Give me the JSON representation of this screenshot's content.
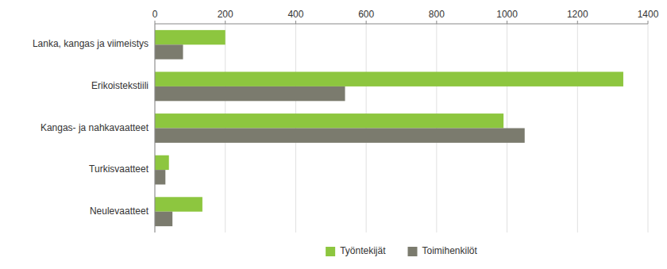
{
  "chart_data": {
    "type": "bar",
    "orientation": "horizontal",
    "categories": [
      "Lanka, kangas ja viimeistys",
      "Erikoistekstiili",
      "Kangas- ja nahkavaatteet",
      "Turkisvaatteet",
      "Neulevaatteet"
    ],
    "series": [
      {
        "name": "Työntekijät",
        "color": "#8DC63F",
        "values": [
          200,
          1330,
          990,
          40,
          135
        ]
      },
      {
        "name": "Toimihenkilöt",
        "color": "#7B7B6E",
        "values": [
          80,
          540,
          1050,
          30,
          50
        ]
      }
    ],
    "xlim": [
      0,
      1400
    ],
    "xticks": [
      0,
      200,
      400,
      600,
      800,
      1000,
      1200,
      1400
    ],
    "grid": true,
    "legend": "bottom"
  }
}
